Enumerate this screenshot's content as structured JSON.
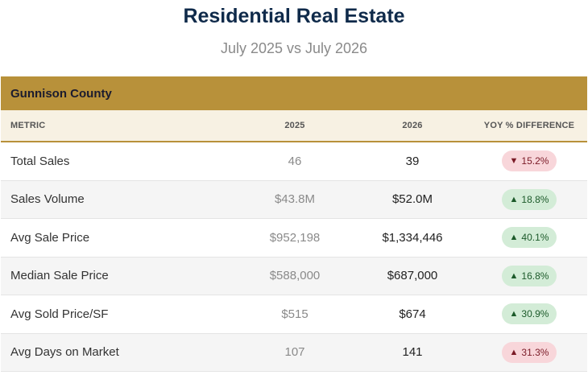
{
  "header": {
    "title": "Residential Real Estate",
    "subtitle": "July 2025 vs July 2026"
  },
  "table": {
    "county": "Gunnison County",
    "columns": {
      "metric": "METRIC",
      "y2025": "2025",
      "y2026": "2026",
      "yoy": "YOY % DIFFERENCE"
    },
    "rows": [
      {
        "metric": "Total Sales",
        "y2025": "46",
        "y2026": "39",
        "yoy": "15.2%",
        "arrow": "▼",
        "trend": "down"
      },
      {
        "metric": "Sales Volume",
        "y2025": "$43.8M",
        "y2026": "$52.0M",
        "yoy": "18.8%",
        "arrow": "▲",
        "trend": "up"
      },
      {
        "metric": "Avg Sale Price",
        "y2025": "$952,198",
        "y2026": "$1,334,446",
        "yoy": "40.1%",
        "arrow": "▲",
        "trend": "up"
      },
      {
        "metric": "Median Sale Price",
        "y2025": "$588,000",
        "y2026": "$687,000",
        "yoy": "16.8%",
        "arrow": "▲",
        "trend": "up"
      },
      {
        "metric": "Avg Sold Price/SF",
        "y2025": "$515",
        "y2026": "$674",
        "yoy": "30.9%",
        "arrow": "▲",
        "trend": "up"
      },
      {
        "metric": "Avg Days on Market",
        "y2025": "107",
        "y2026": "141",
        "yoy": "31.3%",
        "arrow": "▲",
        "trend": "down"
      }
    ]
  },
  "colors": {
    "accent": "#b8913a",
    "title": "#0f2a4a",
    "down_bg": "#f8d6da",
    "up_bg": "#d3ecd7"
  }
}
